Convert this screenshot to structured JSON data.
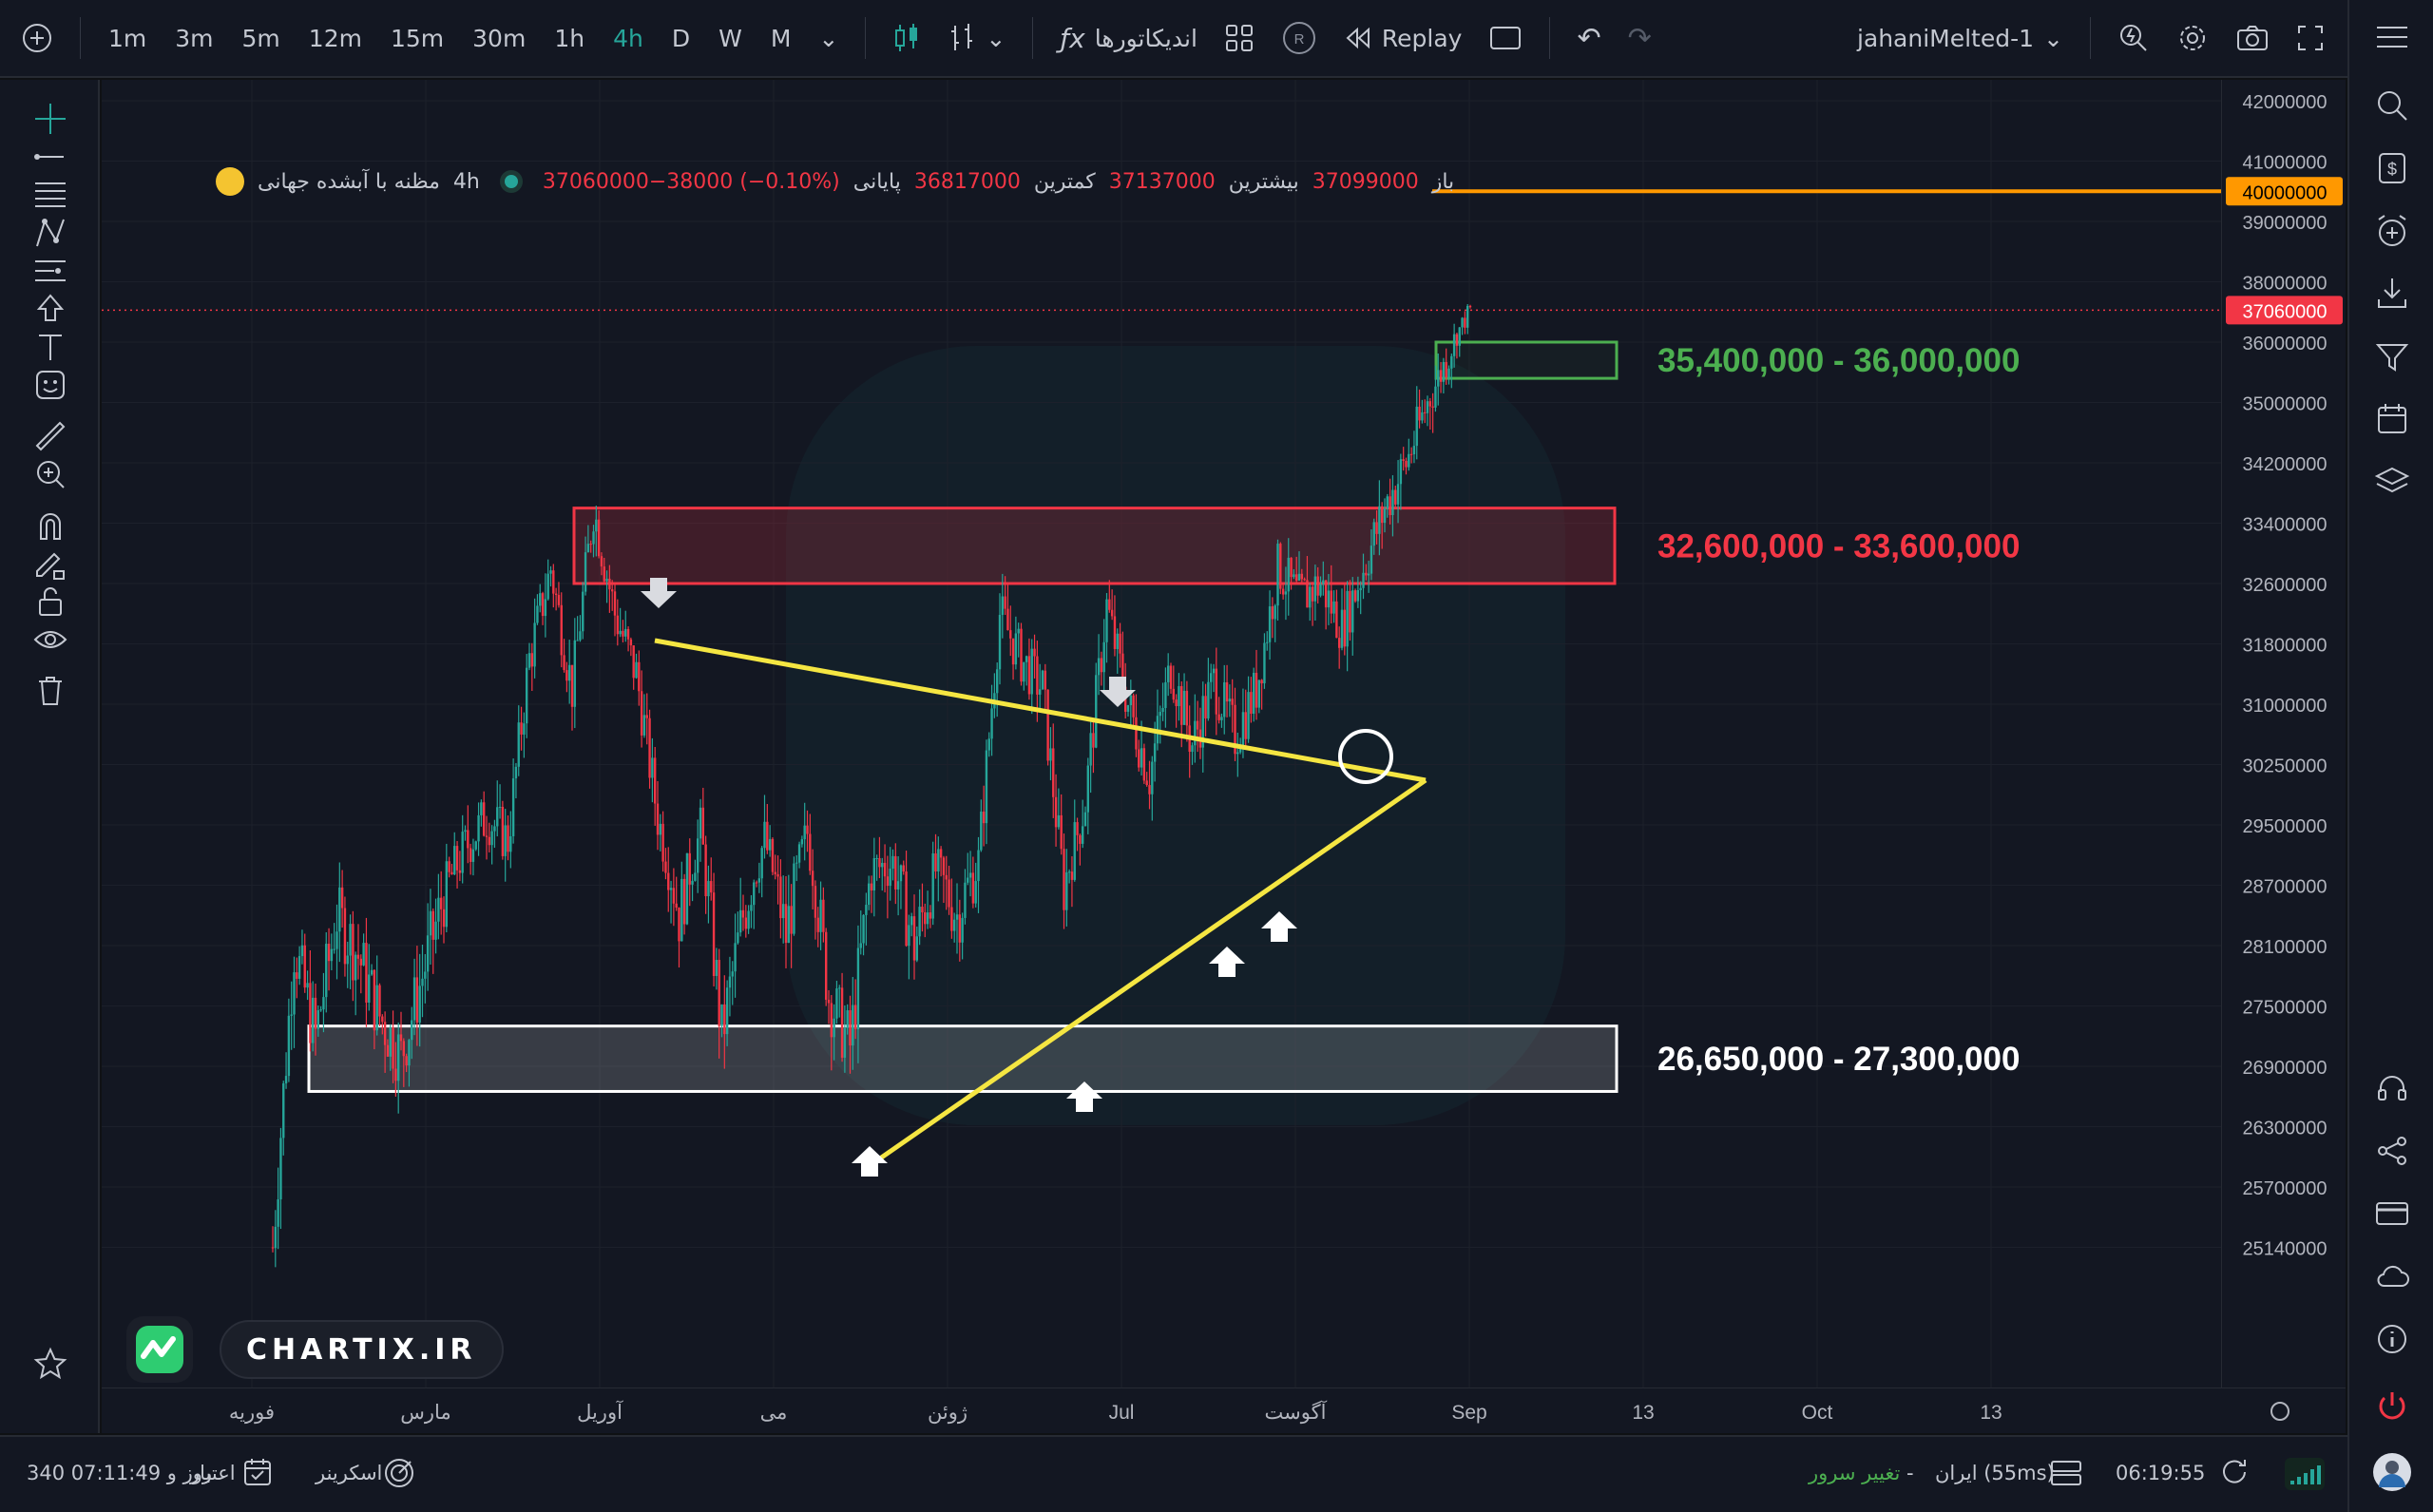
{
  "toolbar": {
    "timeframes": [
      "1m",
      "3m",
      "5m",
      "12m",
      "15m",
      "30m",
      "1h",
      "4h",
      "D",
      "W",
      "M"
    ],
    "active_timeframe": "4h",
    "indicators_label": "اندیکاتورها",
    "replay_label": "Replay",
    "layout_name": "jahaniMelted-1"
  },
  "legend": {
    "symbol": "مظنه با آبشده جهانی",
    "interval": "4h",
    "open_label": "باز",
    "open": "37099000",
    "high_label": "بیشترین",
    "high": "37137000",
    "low_label": "کمترین",
    "low": "36817000",
    "close_label": "پایانی",
    "close_change": "37060000−38000 (−0.10%)"
  },
  "colors": {
    "background": "#131722",
    "up_candle": "#26a69a",
    "down_candle": "#f23645",
    "resistance_zone": "#f23645",
    "support_zone": "#ffffff",
    "breakout_zone": "#4caf50",
    "trendline": "#f5e642",
    "target_line": "#ff9800"
  },
  "chart_data": {
    "type": "candlestick",
    "y_scale": "percent-spaced",
    "price_ticks": [
      42000000,
      41000000,
      39000000,
      38000000,
      36000000,
      35000000,
      34200000,
      33400000,
      32600000,
      31800000,
      31000000,
      30250000,
      29500000,
      28700000,
      28100000,
      27500000,
      26900000,
      26300000,
      25700000,
      25140000
    ],
    "time_ticks": [
      "فوریه",
      "مارس",
      "آوریل",
      "می",
      "ژوئن",
      "Jul",
      "آگوست",
      "Sep",
      "13",
      "Oct",
      "13"
    ],
    "current_price": 37060000,
    "target_level": 40000000,
    "zones": [
      {
        "label": "35,400,000 - 36,000,000",
        "low": 35400000,
        "high": 36000000,
        "color": "#4caf50"
      },
      {
        "label": "32,600,000 - 33,600,000",
        "low": 32600000,
        "high": 33600000,
        "color": "#f23645"
      },
      {
        "label": "26,650,000 - 27,300,000",
        "low": 26650000,
        "high": 27300000,
        "color": "#ffffff"
      }
    ],
    "price_path": [
      {
        "d": "فوریه",
        "p": 25140000
      },
      {
        "p": 28100000
      },
      {
        "p": 27200000
      },
      {
        "p": 28400000
      },
      {
        "p": 28000000
      },
      {
        "p": 27400000
      },
      {
        "d": "مارس",
        "p": 27000000
      },
      {
        "p": 27800000
      },
      {
        "p": 28600000
      },
      {
        "p": 29200000
      },
      {
        "p": 29600000
      },
      {
        "p": 29300000
      },
      {
        "d": "آوریل",
        "p": 31600000
      },
      {
        "p": 32800000
      },
      {
        "p": 31200000
      },
      {
        "p": 33600000
      },
      {
        "p": 32200000
      },
      {
        "p": 31400000
      },
      {
        "p": 29600000
      },
      {
        "p": 28400000
      },
      {
        "p": 29400000
      },
      {
        "d": "می",
        "p": 27200000
      },
      {
        "p": 28400000
      },
      {
        "p": 29300000
      },
      {
        "p": 28200000
      },
      {
        "p": 29400000
      },
      {
        "p": 27600000
      },
      {
        "p": 27100000
      },
      {
        "p": 28900000
      },
      {
        "p": 29000000
      },
      {
        "d": "ژوئن",
        "p": 28100000
      },
      {
        "p": 28900000
      },
      {
        "p": 28400000
      },
      {
        "p": 29000000
      },
      {
        "p": 32200000
      },
      {
        "p": 31600000
      },
      {
        "p": 31200000
      },
      {
        "p": 28700000
      },
      {
        "p": 29800000
      },
      {
        "d": "Jul",
        "p": 32300000
      },
      {
        "p": 31000000
      },
      {
        "p": 30100000
      },
      {
        "p": 31500000
      },
      {
        "p": 30500000
      },
      {
        "p": 31300000
      },
      {
        "p": 30600000
      },
      {
        "d": "آگوست",
        "p": 31200000
      },
      {
        "p": 32800000
      },
      {
        "p": 32400000
      },
      {
        "p": 32600000
      },
      {
        "p": 32000000
      },
      {
        "p": 32800000
      },
      {
        "p": 33600000
      },
      {
        "p": 34200000
      },
      {
        "p": 35000000
      },
      {
        "p": 35800000
      },
      {
        "d": "Sep",
        "p": 37060000
      }
    ],
    "annotations": {
      "down_arrows": 2,
      "up_arrows": 4,
      "circle": "breakout retest"
    }
  },
  "brand": {
    "name": "CHARTIX.IR"
  },
  "status": {
    "clock": "06:19:55",
    "server": "ایران (55ms)",
    "dash": "-",
    "change_server": "تغییر سرور",
    "screener": "اسکرینر",
    "credit_label": "اعتبار",
    "credit_value": "340 روز و 07:11:49"
  }
}
